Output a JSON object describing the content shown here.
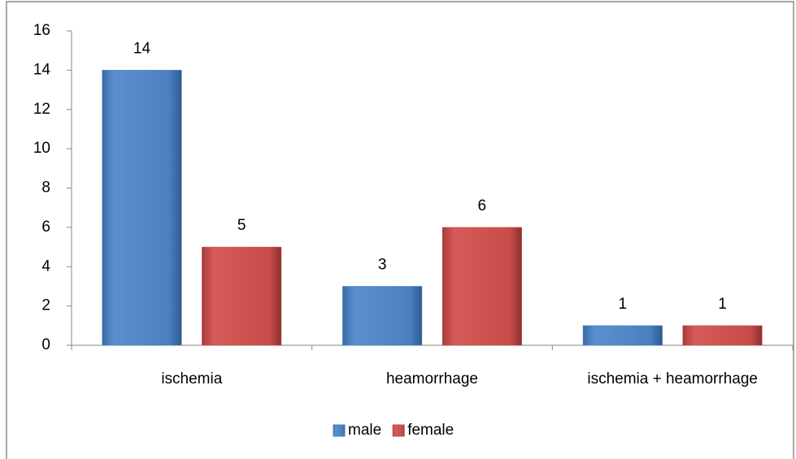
{
  "chart_data": {
    "type": "bar",
    "categories": [
      "ischemia",
      "heamorrhage",
      "ischemia + heamorrhage"
    ],
    "series": [
      {
        "name": "male",
        "color": "#4f81bd",
        "values": [
          14,
          3,
          1
        ]
      },
      {
        "name": "female",
        "color": "#c0504d",
        "values": [
          5,
          6,
          1
        ]
      }
    ],
    "ylim": [
      0,
      16
    ],
    "yticks": [
      0,
      2,
      4,
      6,
      8,
      10,
      12,
      14,
      16
    ],
    "grid": false,
    "legend": "bottom"
  }
}
